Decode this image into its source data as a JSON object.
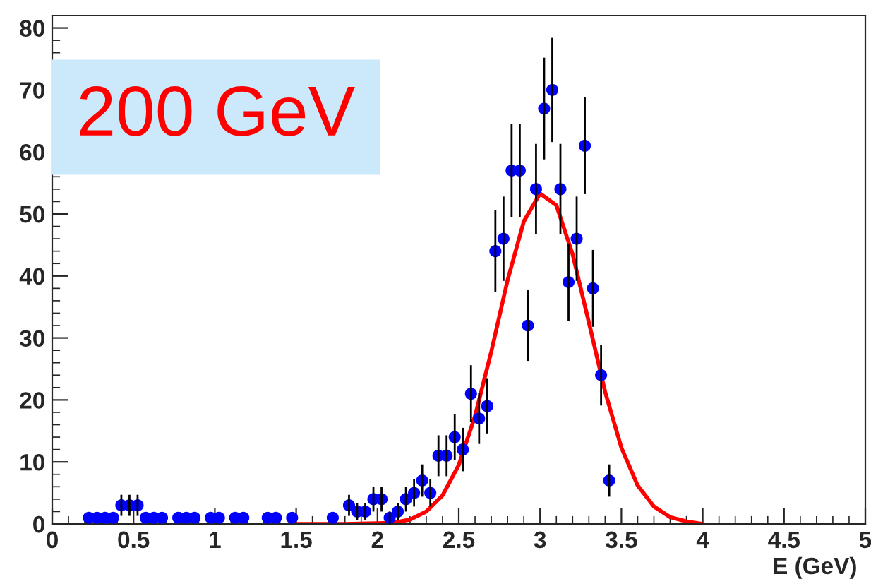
{
  "chart_data": {
    "type": "scatter",
    "xlabel": "E (GeV)",
    "xlim": [
      0,
      5
    ],
    "ylim": [
      0,
      82
    ],
    "xticks": [
      0,
      0.5,
      1,
      1.5,
      2,
      2.5,
      3,
      3.5,
      4,
      4.5,
      5
    ],
    "yticks": [
      0,
      10,
      20,
      30,
      40,
      50,
      60,
      70,
      80
    ],
    "grid": false,
    "marker": "circle",
    "annotations": [
      "200 GeV"
    ],
    "series": [
      {
        "color": "#0000ff",
        "x": [
          0.225,
          0.275,
          0.325,
          0.375,
          0.425,
          0.475,
          0.525,
          0.575,
          0.625,
          0.675,
          0.775,
          0.825,
          0.875,
          0.975,
          1.025,
          1.125,
          1.175,
          1.325,
          1.375,
          1.475,
          1.725,
          1.825,
          1.875,
          1.925,
          1.975,
          2.025,
          2.075,
          2.125,
          2.175,
          2.225,
          2.275,
          2.325,
          2.375,
          2.425,
          2.475,
          2.525,
          2.575,
          2.625,
          2.675,
          2.725,
          2.775,
          2.825,
          2.875,
          2.925,
          2.975,
          3.025,
          3.075,
          3.125,
          3.175,
          3.225,
          3.275,
          3.325,
          3.375,
          3.425
        ],
        "values": [
          1,
          1,
          1,
          1,
          3,
          3,
          3,
          1,
          1,
          1,
          1,
          1,
          1,
          1,
          1,
          1,
          1,
          1,
          1,
          1,
          1,
          3,
          2,
          2,
          4,
          4,
          1,
          2,
          4,
          5,
          7,
          5,
          11,
          11,
          14,
          12,
          21,
          17,
          19,
          44,
          46,
          57,
          57,
          32,
          54,
          67,
          70,
          54,
          39,
          46,
          61,
          38,
          24,
          7
        ],
        "errors": [
          null,
          null,
          null,
          null,
          1.7,
          1.7,
          1.7,
          null,
          null,
          null,
          null,
          null,
          null,
          null,
          null,
          null,
          null,
          null,
          null,
          null,
          null,
          1.7,
          1.4,
          1.4,
          2,
          2,
          1,
          1.4,
          2,
          2.2,
          2.6,
          2.2,
          3.3,
          3.3,
          3.7,
          3.5,
          4.6,
          4.1,
          4.4,
          6.6,
          6.8,
          7.5,
          7.5,
          5.7,
          7.3,
          8.2,
          8.4,
          7.3,
          6.2,
          6.8,
          7.8,
          6.2,
          4.9,
          2.6
        ]
      },
      {
        "type": "line",
        "color": "#ff0000",
        "marker": "none",
        "line_style": "solid",
        "x": [
          1.5,
          1.8,
          2.0,
          2.1,
          2.2,
          2.3,
          2.4,
          2.5,
          2.6,
          2.7,
          2.8,
          2.9,
          3.0,
          3.1,
          3.2,
          3.3,
          3.4,
          3.5,
          3.6,
          3.7,
          3.8,
          3.9,
          4.0
        ],
        "values": [
          0,
          0,
          0.1,
          0.2,
          0.7,
          2.0,
          4.6,
          9.5,
          17.4,
          27.8,
          39.3,
          48.8,
          53.3,
          51.4,
          43.5,
          32.5,
          21.3,
          12.3,
          6.2,
          2.8,
          1.1,
          0.4,
          0
        ]
      }
    ]
  }
}
